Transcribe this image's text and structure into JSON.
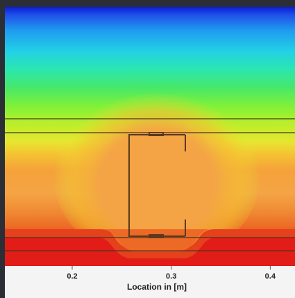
{
  "chart_data": {
    "type": "heatmap",
    "title": "",
    "xlabel": "Location in [m]",
    "ylabel": "",
    "x_ticks": [
      0.2,
      0.3,
      0.4
    ],
    "x_tick_labels": [
      "0.2",
      "0.3",
      "0.4"
    ],
    "xlim": [
      0.132,
      0.425
    ],
    "colormap": [
      "#0a1bd6",
      "#1f4fe8",
      "#1f9bf0",
      "#22d0e6",
      "#2be6b0",
      "#46e86a",
      "#7ef03a",
      "#b9ef2a",
      "#e6e630",
      "#f5c232",
      "#f5a23a",
      "#f4a445",
      "#f08a34",
      "#ec6a26",
      "#e4411c",
      "#e21c17"
    ],
    "background_color": "#2b2f35",
    "axis_band_color": "#f4f4f4",
    "line_color": "#4a3520",
    "grid": false,
    "legend": "none",
    "annotations": []
  }
}
